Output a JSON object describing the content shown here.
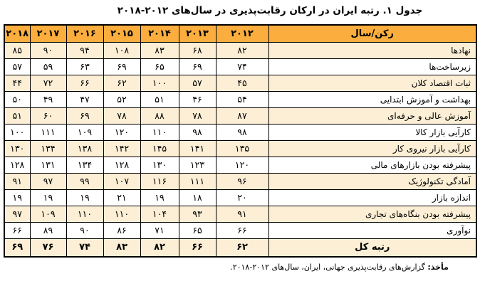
{
  "title": "جدول ۱. رتبه ایران در ارکان رقابت‌پذیری در سال‌های ۲۰۱۲-۲۰۱۸",
  "colors": {
    "header_bg": "#fbae3d",
    "stripe_bg": "#fcefd5",
    "row_bg": "#ffffff",
    "border": "#000000"
  },
  "table": {
    "header_label": "رکن/سال",
    "years": [
      "۲۰۱۲",
      "۲۰۱۳",
      "۲۰۱۴",
      "۲۰۱۵",
      "۲۰۱۶",
      "۲۰۱۷",
      "۲۰۱۸"
    ],
    "rows": [
      {
        "label": "نهادها",
        "values": [
          "۸۲",
          "۶۸",
          "۸۳",
          "۱۰۸",
          "۹۴",
          "۹۰",
          "۸۵"
        ],
        "shaded": true,
        "total": false
      },
      {
        "label": "زیرساخت‌ها",
        "values": [
          "۷۴",
          "۶۹",
          "۶۵",
          "۶۹",
          "۶۳",
          "۵۹",
          "۵۷"
        ],
        "shaded": false,
        "total": false
      },
      {
        "label": "ثبات اقتصاد کلان",
        "values": [
          "۴۵",
          "۵۷",
          "۱۰۰",
          "۶۲",
          "۶۶",
          "۷۲",
          "۴۴"
        ],
        "shaded": true,
        "total": false
      },
      {
        "label": "بهداشت و آموزش ابتدایی",
        "values": [
          "۵۴",
          "۴۶",
          "۵۱",
          "۵۲",
          "۴۷",
          "۴۹",
          "۵۰"
        ],
        "shaded": false,
        "total": false
      },
      {
        "label": "آموزش عالی و حرفه‌ای",
        "values": [
          "۸۷",
          "۷۸",
          "۸۸",
          "۷۸",
          "۶۹",
          "۶۰",
          "۵۱"
        ],
        "shaded": true,
        "total": false
      },
      {
        "label": "کارآیی بازار کالا",
        "values": [
          "۹۸",
          "۹۸",
          "۱۱۰",
          "۱۲۰",
          "۱۰۹",
          "۱۱۱",
          "۱۰۰"
        ],
        "shaded": false,
        "total": false
      },
      {
        "label": "کارآیی بازار نیروی کار",
        "values": [
          "۱۳۵",
          "۱۴۱",
          "۱۴۵",
          "۱۴۲",
          "۱۳۸",
          "۱۳۴",
          "۱۳۰"
        ],
        "shaded": true,
        "total": false
      },
      {
        "label": "پیشرفته بودن بازارهای مالی",
        "values": [
          "۱۲۰",
          "۱۲۳",
          "۱۳۰",
          "۱۲۸",
          "۱۳۴",
          "۱۳۱",
          "۱۲۸"
        ],
        "shaded": false,
        "total": false
      },
      {
        "label": "آمادگی تکنولوژیک",
        "values": [
          "۹۶",
          "۱۱۱",
          "۱۱۶",
          "۱۰۷",
          "۹۹",
          "۹۷",
          "۹۱"
        ],
        "shaded": true,
        "total": false
      },
      {
        "label": "اندازه بازار",
        "values": [
          "۲۰",
          "۱۸",
          "۱۹",
          "۲۱",
          "۱۹",
          "۱۹",
          "۱۹"
        ],
        "shaded": false,
        "total": false
      },
      {
        "label": "پیشرفته بودن بنگاه‌های تجاری",
        "values": [
          "۹۱",
          "۹۳",
          "۱۰۴",
          "۱۱۰",
          "۱۱۰",
          "۱۰۹",
          "۹۷"
        ],
        "shaded": true,
        "total": false
      },
      {
        "label": "نوآوری",
        "values": [
          "۶۶",
          "۶۵",
          "۷۱",
          "۸۶",
          "۹۰",
          "۸۹",
          "۶۶"
        ],
        "shaded": false,
        "total": false
      },
      {
        "label": "رتبه کل",
        "values": [
          "۶۲",
          "۶۶",
          "۸۲",
          "۸۳",
          "۷۴",
          "۷۶",
          "۶۹"
        ],
        "shaded": true,
        "total": true
      }
    ]
  },
  "source": {
    "label": "مأخذ:",
    "text": " گزارش‌های رقابت‌پذیری جهانی، ایران، سال‌های ۲۰۱۲-۲۰۱۸."
  },
  "chart_data": {
    "type": "table",
    "title": "جدول ۱. رتبه ایران در ارکان رقابت‌پذیری در سال‌های ۲۰۱۲-۲۰۱۸",
    "categories": [
      2012,
      2013,
      2014,
      2015,
      2016,
      2017,
      2018
    ],
    "series": [
      {
        "name": "نهادها",
        "values": [
          82,
          68,
          83,
          108,
          94,
          90,
          85
        ]
      },
      {
        "name": "زیرساخت‌ها",
        "values": [
          74,
          69,
          65,
          69,
          63,
          59,
          57
        ]
      },
      {
        "name": "ثبات اقتصاد کلان",
        "values": [
          45,
          57,
          100,
          62,
          66,
          72,
          44
        ]
      },
      {
        "name": "بهداشت و آموزش ابتدایی",
        "values": [
          54,
          46,
          51,
          52,
          47,
          49,
          50
        ]
      },
      {
        "name": "آموزش عالی و حرفه‌ای",
        "values": [
          87,
          78,
          88,
          78,
          69,
          60,
          51
        ]
      },
      {
        "name": "کارآیی بازار کالا",
        "values": [
          98,
          98,
          110,
          120,
          109,
          111,
          100
        ]
      },
      {
        "name": "کارآیی بازار نیروی کار",
        "values": [
          135,
          141,
          145,
          142,
          138,
          134,
          130
        ]
      },
      {
        "name": "پیشرفته بودن بازارهای مالی",
        "values": [
          120,
          123,
          130,
          128,
          134,
          131,
          128
        ]
      },
      {
        "name": "آمادگی تکنولوژیک",
        "values": [
          96,
          111,
          116,
          107,
          99,
          97,
          91
        ]
      },
      {
        "name": "اندازه بازار",
        "values": [
          20,
          18,
          19,
          21,
          19,
          19,
          19
        ]
      },
      {
        "name": "پیشرفته بودن بنگاه‌های تجاری",
        "values": [
          91,
          93,
          104,
          110,
          110,
          109,
          97
        ]
      },
      {
        "name": "نوآوری",
        "values": [
          66,
          65,
          71,
          86,
          90,
          89,
          66
        ]
      },
      {
        "name": "رتبه کل",
        "values": [
          62,
          66,
          82,
          83,
          74,
          76,
          69
        ]
      }
    ]
  }
}
